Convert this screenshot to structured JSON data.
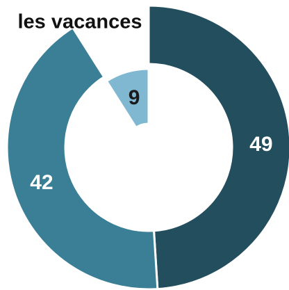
{
  "chart_data": {
    "type": "donut",
    "title": "les vacances",
    "values": [
      49,
      42,
      9
    ],
    "colors": [
      "#234e5e",
      "#3b7f96",
      "#7fb8d0"
    ],
    "label_colors": [
      "#ffffff",
      "#ffffff",
      "#1a1a1a"
    ]
  }
}
